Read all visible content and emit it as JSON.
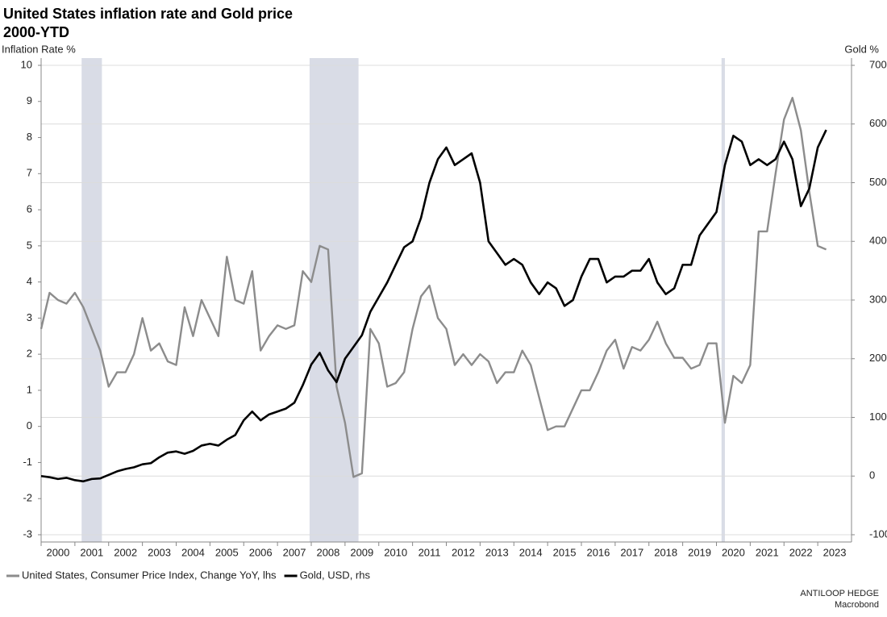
{
  "chart_data": {
    "type": "line",
    "title": "United States inflation rate and Gold price",
    "subtitle": "2000-YTD",
    "y_label": "Inflation Rate %",
    "y2_label": "Gold %",
    "credits": [
      "ANTILOOP HEDGE",
      "Macrobond"
    ],
    "x": [
      2000,
      2000.25,
      2000.5,
      2000.75,
      2001,
      2001.25,
      2001.5,
      2001.75,
      2002,
      2002.25,
      2002.5,
      2002.75,
      2003,
      2003.25,
      2003.5,
      2003.75,
      2004,
      2004.25,
      2004.5,
      2004.75,
      2005,
      2005.25,
      2005.5,
      2005.75,
      2006,
      2006.25,
      2006.5,
      2006.75,
      2007,
      2007.25,
      2007.5,
      2007.75,
      2008,
      2008.25,
      2008.5,
      2008.75,
      2009,
      2009.25,
      2009.5,
      2009.75,
      2010,
      2010.25,
      2010.5,
      2010.75,
      2011,
      2011.25,
      2011.5,
      2011.75,
      2012,
      2012.25,
      2012.5,
      2012.75,
      2013,
      2013.25,
      2013.5,
      2013.75,
      2014,
      2014.25,
      2014.5,
      2014.75,
      2015,
      2015.25,
      2015.5,
      2015.75,
      2016,
      2016.25,
      2016.5,
      2016.75,
      2017,
      2017.25,
      2017.5,
      2017.75,
      2018,
      2018.25,
      2018.5,
      2018.75,
      2019,
      2019.25,
      2019.5,
      2019.75,
      2020,
      2020.25,
      2020.5,
      2020.75,
      2021,
      2021.25,
      2021.5,
      2021.75,
      2022,
      2022.25,
      2022.5,
      2022.75,
      2023,
      2023.25
    ],
    "series": [
      {
        "name": "United States, Consumer Price Index, Change YoY, lhs",
        "color": "#8c8c8c",
        "axis": "y",
        "values": [
          2.7,
          3.7,
          3.5,
          3.4,
          3.7,
          3.3,
          2.7,
          2.1,
          1.1,
          1.5,
          1.5,
          2.0,
          3.0,
          2.1,
          2.3,
          1.8,
          1.7,
          3.3,
          2.5,
          3.5,
          3.0,
          2.5,
          4.7,
          3.5,
          3.4,
          4.3,
          2.1,
          2.5,
          2.8,
          2.7,
          2.8,
          4.3,
          4.0,
          5.0,
          4.9,
          1.1,
          0.1,
          -1.4,
          -1.3,
          2.7,
          2.3,
          1.1,
          1.2,
          1.5,
          2.7,
          3.6,
          3.9,
          3.0,
          2.7,
          1.7,
          2.0,
          1.7,
          2.0,
          1.8,
          1.2,
          1.5,
          1.5,
          2.1,
          1.7,
          0.8,
          -0.1,
          0.0,
          0.0,
          0.5,
          1.0,
          1.0,
          1.5,
          2.1,
          2.4,
          1.6,
          2.2,
          2.1,
          2.4,
          2.9,
          2.3,
          1.9,
          1.9,
          1.6,
          1.7,
          2.3,
          2.3,
          0.1,
          1.4,
          1.2,
          1.7,
          5.4,
          5.4,
          7.0,
          8.5,
          9.1,
          8.2,
          6.5,
          5.0,
          4.9
        ]
      },
      {
        "name": "Gold, USD, rhs",
        "color": "#000000",
        "axis": "y2",
        "values": [
          0,
          -2,
          -5,
          -3,
          -7,
          -9,
          -5,
          -4,
          2,
          8,
          12,
          15,
          20,
          22,
          32,
          40,
          42,
          38,
          43,
          52,
          55,
          52,
          62,
          70,
          95,
          110,
          95,
          105,
          110,
          115,
          125,
          155,
          190,
          210,
          180,
          160,
          200,
          220,
          240,
          280,
          305,
          330,
          360,
          390,
          400,
          440,
          500,
          540,
          560,
          530,
          540,
          550,
          500,
          400,
          380,
          360,
          370,
          360,
          330,
          310,
          330,
          320,
          290,
          300,
          340,
          370,
          370,
          330,
          340,
          340,
          350,
          350,
          370,
          330,
          310,
          320,
          360,
          360,
          410,
          430,
          450,
          530,
          580,
          570,
          530,
          540,
          530,
          540,
          570,
          540,
          460,
          490,
          560,
          590
        ]
      }
    ],
    "shaded_periods": [
      {
        "start": 2001.2,
        "end": 2001.8
      },
      {
        "start": 2007.95,
        "end": 2009.4
      },
      {
        "start": 2020.15,
        "end": 2020.25
      }
    ],
    "shade_color": "#d9dce6",
    "xlim": [
      2000,
      2024
    ],
    "xticks": [
      2000,
      2001,
      2002,
      2003,
      2004,
      2005,
      2006,
      2007,
      2008,
      2009,
      2010,
      2011,
      2012,
      2013,
      2014,
      2015,
      2016,
      2017,
      2018,
      2019,
      2020,
      2021,
      2022,
      2023
    ],
    "ylim": [
      -3,
      10
    ],
    "yticks": [
      -3,
      -2,
      -1,
      0,
      1,
      2,
      3,
      4,
      5,
      6,
      7,
      8,
      9,
      10
    ],
    "y2lim": [
      -100,
      700
    ],
    "y2ticks": [
      -100,
      0,
      100,
      200,
      300,
      400,
      500,
      600,
      700
    ],
    "grid": "y2"
  }
}
